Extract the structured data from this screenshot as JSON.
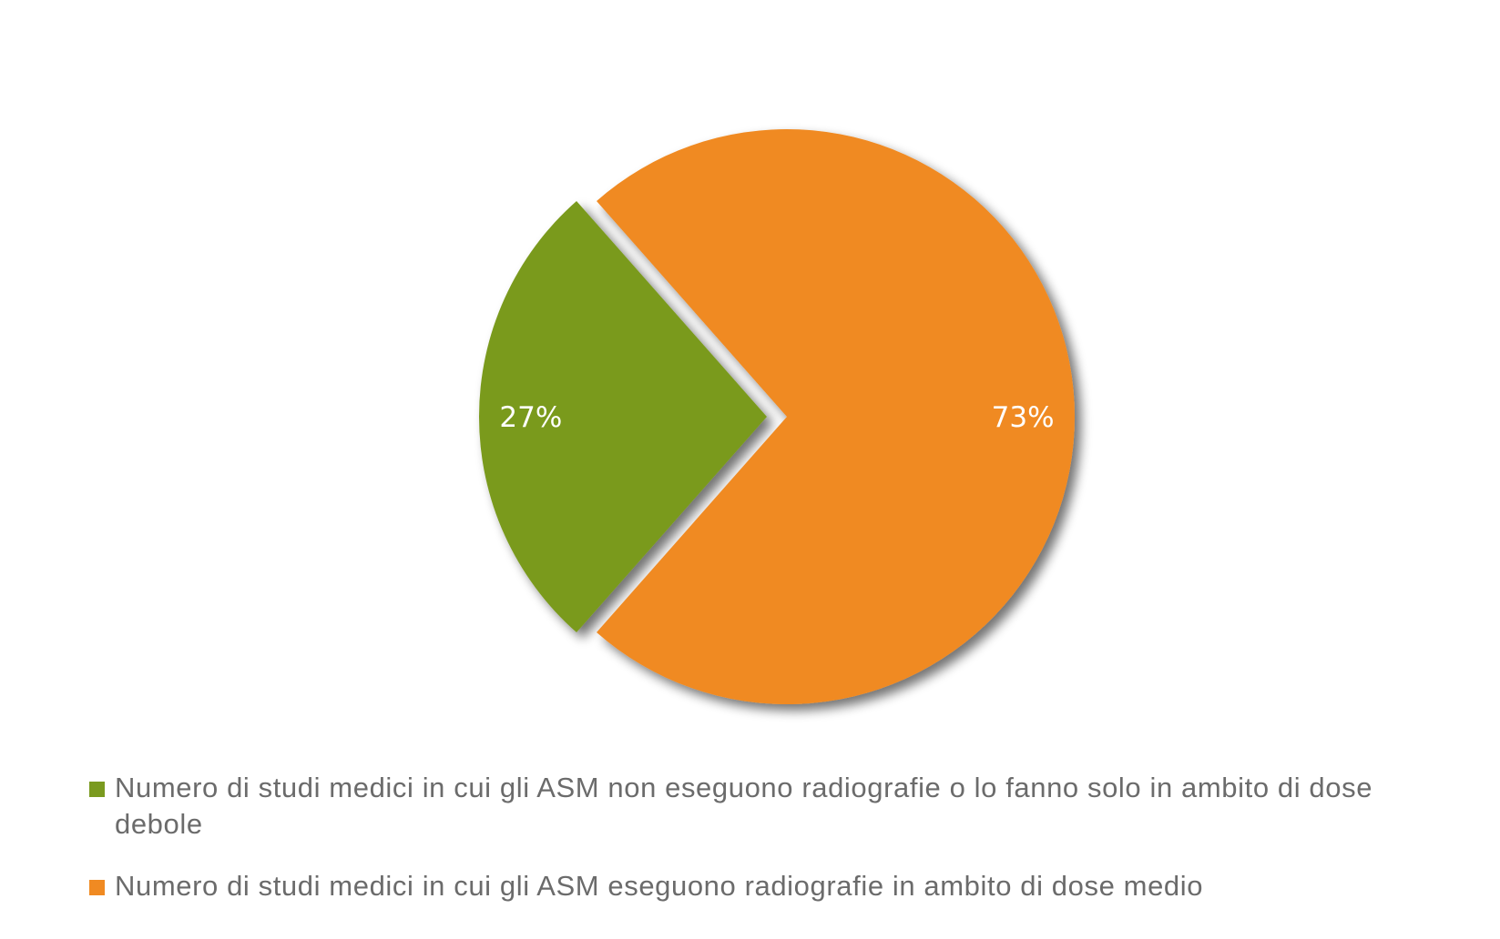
{
  "chart_data": {
    "type": "pie",
    "slices": [
      {
        "label": "Numero di studi medici in cui gli ASM non eseguono radiografie o lo fanno solo in ambito di dose debole",
        "value": 27,
        "display": "27%",
        "color": "#7a9a1f",
        "exploded": true
      },
      {
        "label": "Numero di studi medici in cui gli ASM eseguono radiografie in ambito di dose medio",
        "value": 73,
        "display": "73%",
        "color": "#f08a22",
        "exploded": false
      }
    ],
    "legend_position": "bottom"
  }
}
